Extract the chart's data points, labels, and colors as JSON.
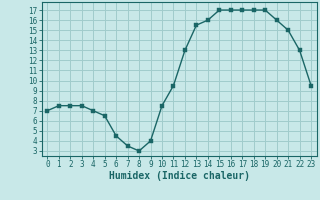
{
  "x": [
    0,
    1,
    2,
    3,
    4,
    5,
    6,
    7,
    8,
    9,
    10,
    11,
    12,
    13,
    14,
    15,
    16,
    17,
    18,
    19,
    20,
    21,
    22,
    23
  ],
  "y": [
    7,
    7.5,
    7.5,
    7.5,
    7,
    6.5,
    4.5,
    3.5,
    3,
    4,
    7.5,
    9.5,
    13,
    15.5,
    16,
    17,
    17,
    17,
    17,
    17,
    16,
    15,
    13,
    9.5
  ],
  "line_color": "#1a6666",
  "marker_color": "#1a6666",
  "bg_color": "#c8e8e8",
  "grid_color": "#a0cccc",
  "xlabel": "Humidex (Indice chaleur)",
  "xlim": [
    -0.5,
    23.5
  ],
  "ylim": [
    2.5,
    17.8
  ],
  "yticks": [
    3,
    4,
    5,
    6,
    7,
    8,
    9,
    10,
    11,
    12,
    13,
    14,
    15,
    16,
    17
  ],
  "xticks": [
    0,
    1,
    2,
    3,
    4,
    5,
    6,
    7,
    8,
    9,
    10,
    11,
    12,
    13,
    14,
    15,
    16,
    17,
    18,
    19,
    20,
    21,
    22,
    23
  ],
  "font_color": "#1a6666",
  "axis_color": "#1a6666",
  "tick_fontsize": 5.5,
  "xlabel_fontsize": 7.0,
  "linewidth": 1.0,
  "markersize": 2.2
}
